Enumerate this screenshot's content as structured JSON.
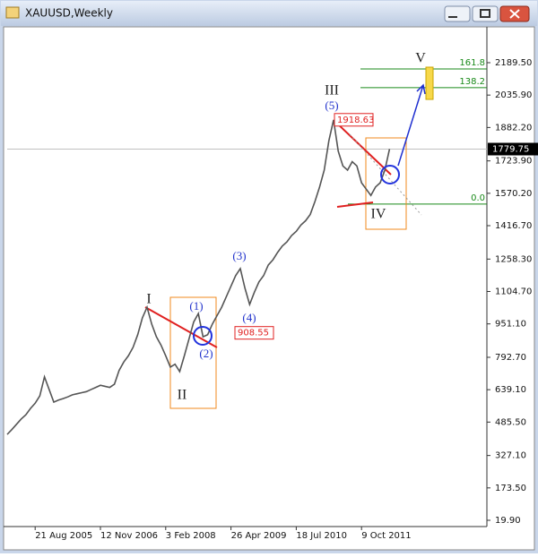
{
  "chart_data": {
    "type": "line",
    "title": "XAUUSD,Weekly",
    "color": "#555555",
    "categories": [
      null,
      null,
      null,
      null,
      null,
      null,
      "21 Aug 2005",
      null,
      null,
      null,
      null,
      null,
      null,
      null,
      null,
      null,
      null,
      null,
      null,
      null,
      "12 Nov 2006",
      null,
      null,
      null,
      null,
      null,
      null,
      null,
      null,
      null,
      null,
      null,
      null,
      null,
      "3 Feb 2008",
      null,
      null,
      null,
      null,
      null,
      null,
      null,
      null,
      null,
      null,
      null,
      null,
      null,
      "26 Apr 2009",
      null,
      null,
      null,
      null,
      null,
      null,
      null,
      null,
      null,
      null,
      null,
      null,
      null,
      "18 Jul 2010",
      null,
      null,
      null,
      null,
      null,
      null,
      null,
      null,
      null,
      null,
      null,
      null,
      null,
      "9 Oct 2011",
      null,
      null,
      null,
      null,
      null,
      null
    ],
    "values": [
      427,
      450,
      475,
      500,
      520,
      550,
      575,
      610,
      700,
      640,
      580,
      590,
      597,
      605,
      615,
      620,
      625,
      630,
      640,
      650,
      660,
      655,
      650,
      665,
      730,
      770,
      800,
      840,
      900,
      980,
      1030,
      950,
      890,
      850,
      800,
      746,
      760,
      725,
      800,
      880,
      960,
      1000,
      890,
      900,
      950,
      990,
      1030,
      1080,
      1130,
      1180,
      1213,
      1120,
      1043,
      1100,
      1150,
      1180,
      1230,
      1255,
      1290,
      1320,
      1340,
      1370,
      1390,
      1420,
      1440,
      1470,
      1531,
      1600,
      1680,
      1820,
      1918,
      1770,
      1700,
      1680,
      1720,
      1700,
      1620,
      1590,
      1560,
      1600,
      1620,
      1680,
      1780
    ],
    "ylim": [
      -9.8,
      2359.3
    ],
    "yticks": [
      {
        "value": 2189.5,
        "label": "2189.50"
      },
      {
        "value": 2035.9,
        "label": "2035.90"
      },
      {
        "value": 1882.2,
        "label": "1882.20"
      },
      {
        "value": 1723.9,
        "label": "1723.90"
      },
      {
        "value": 1570.2,
        "label": "1570.20"
      },
      {
        "value": 1416.7,
        "label": "1416.70"
      },
      {
        "value": 1258.3,
        "label": "1258.30"
      },
      {
        "value": 1104.7,
        "label": "1104.70"
      },
      {
        "value": 951.1,
        "label": "951.10"
      },
      {
        "value": 792.7,
        "label": "792.70"
      },
      {
        "value": 639.1,
        "label": "639.10"
      },
      {
        "value": 485.5,
        "label": "485.50"
      },
      {
        "value": 327.1,
        "label": "327.10"
      },
      {
        "value": 173.5,
        "label": "173.50"
      },
      {
        "value": 19.9,
        "label": "19.90"
      }
    ],
    "last_price": 1779.75,
    "price_labels": [
      1918.63,
      908.55
    ],
    "fib_levels": [
      {
        "label": "161.8",
        "price": 2160
      },
      {
        "label": "138.2",
        "price": 2071
      },
      {
        "label": "0.0",
        "price": 1519
      }
    ],
    "wave_labels": [
      "I",
      "II",
      "III",
      "IV",
      "V",
      "(1)",
      "(2)",
      "(3)",
      "(4)",
      "(5)"
    ]
  }
}
